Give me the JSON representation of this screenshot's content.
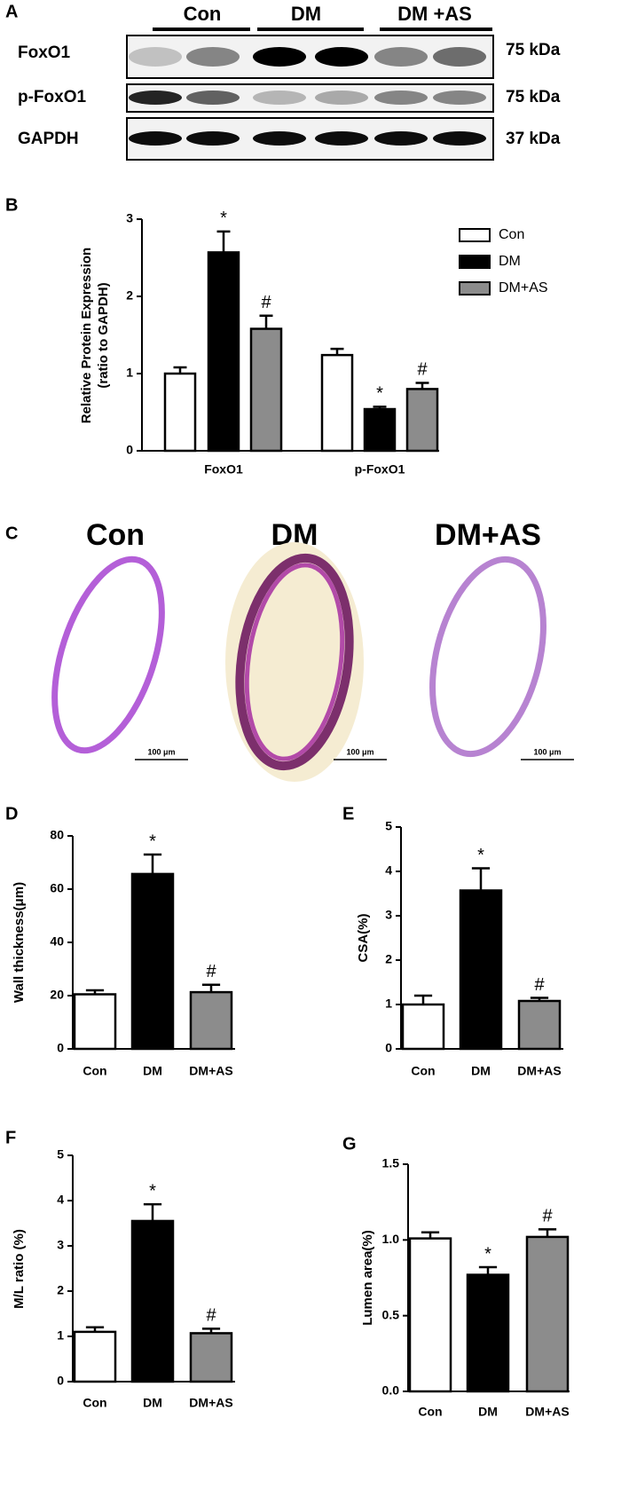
{
  "blot": {
    "panel": "A",
    "groups": [
      "Con",
      "DM",
      "DM +AS"
    ],
    "rows": [
      {
        "label": "FoxO1",
        "size": "75 kDa"
      },
      {
        "label": "p-FoxO1",
        "size": "75 kDa"
      },
      {
        "label": "GAPDH",
        "size": "37 kDa"
      }
    ]
  },
  "histology": {
    "panel": "C",
    "titles": [
      "Con",
      "DM",
      "DM+AS"
    ],
    "scale_bars": [
      "100 μm",
      "100 μm",
      "100 μm"
    ]
  },
  "chart_data": [
    {
      "type": "grouped-bar",
      "panel": "B",
      "ylabel": [
        "Relative Protein Expression",
        "(ratio to GAPDH)"
      ],
      "categories": [
        "FoxO1",
        "p-FoxO1"
      ],
      "series": [
        {
          "name": "Con",
          "color": "#ffffff",
          "values": [
            1.0,
            1.24
          ],
          "errors": [
            0.08,
            0.08
          ],
          "annotations": [
            null,
            null
          ]
        },
        {
          "name": "DM",
          "color": "#000000",
          "values": [
            2.57,
            0.54
          ],
          "errors": [
            0.27,
            0.03
          ],
          "annotations": [
            "*",
            "*"
          ]
        },
        {
          "name": "DM+AS",
          "color": "#8c8c8c",
          "values": [
            1.58,
            0.8
          ],
          "errors": [
            0.17,
            0.08
          ],
          "annotations": [
            "#",
            "#"
          ]
        }
      ],
      "edgecolor": "#000000",
      "ylim": [
        0,
        3
      ],
      "yticks": [
        0,
        1,
        2,
        3
      ],
      "legend": "upper right"
    },
    {
      "type": "bar",
      "panel": "D",
      "ylabel": "Wall thickness(μm)",
      "categories": [
        "Con",
        "DM",
        "DM+AS"
      ],
      "values": [
        20.5,
        65.7,
        21.3
      ],
      "errors": [
        1.5,
        7.3,
        2.8
      ],
      "annotations": [
        null,
        "*",
        "#"
      ],
      "colors": [
        "#ffffff",
        "#000000",
        "#8c8c8c"
      ],
      "edgecolor": "#000000",
      "ylim": [
        0,
        80
      ],
      "yticks": [
        0,
        20,
        40,
        60,
        80
      ]
    },
    {
      "type": "bar",
      "panel": "E",
      "ylabel": "CSA(%)",
      "categories": [
        "Con",
        "DM",
        "DM+AS"
      ],
      "values": [
        1.0,
        3.57,
        1.08
      ],
      "errors": [
        0.2,
        0.5,
        0.07
      ],
      "annotations": [
        null,
        "*",
        "#"
      ],
      "colors": [
        "#ffffff",
        "#000000",
        "#8c8c8c"
      ],
      "edgecolor": "#000000",
      "ylim": [
        0,
        5
      ],
      "yticks": [
        0,
        1,
        2,
        3,
        4,
        5
      ]
    },
    {
      "type": "bar",
      "panel": "F",
      "ylabel": "M/L ratio (%)",
      "categories": [
        "Con",
        "DM",
        "DM+AS"
      ],
      "values": [
        1.1,
        3.55,
        1.07
      ],
      "errors": [
        0.1,
        0.37,
        0.1
      ],
      "annotations": [
        null,
        "*",
        "#"
      ],
      "colors": [
        "#ffffff",
        "#000000",
        "#8c8c8c"
      ],
      "edgecolor": "#000000",
      "ylim": [
        0,
        5
      ],
      "yticks": [
        0,
        1,
        2,
        3,
        4,
        5
      ]
    },
    {
      "type": "bar",
      "panel": "G",
      "ylabel": "Lumen area(%)",
      "categories": [
        "Con",
        "DM",
        "DM+AS"
      ],
      "values": [
        1.01,
        0.77,
        1.02
      ],
      "errors": [
        0.04,
        0.05,
        0.05
      ],
      "annotations": [
        null,
        "*",
        "#"
      ],
      "colors": [
        "#ffffff",
        "#000000",
        "#8c8c8c"
      ],
      "edgecolor": "#000000",
      "ylim": [
        0,
        1.5
      ],
      "yticks": [
        {
          "value": 0,
          "label": "0.0"
        },
        0.5,
        {
          "value": 1,
          "label": "1.0"
        },
        1.5
      ]
    }
  ]
}
